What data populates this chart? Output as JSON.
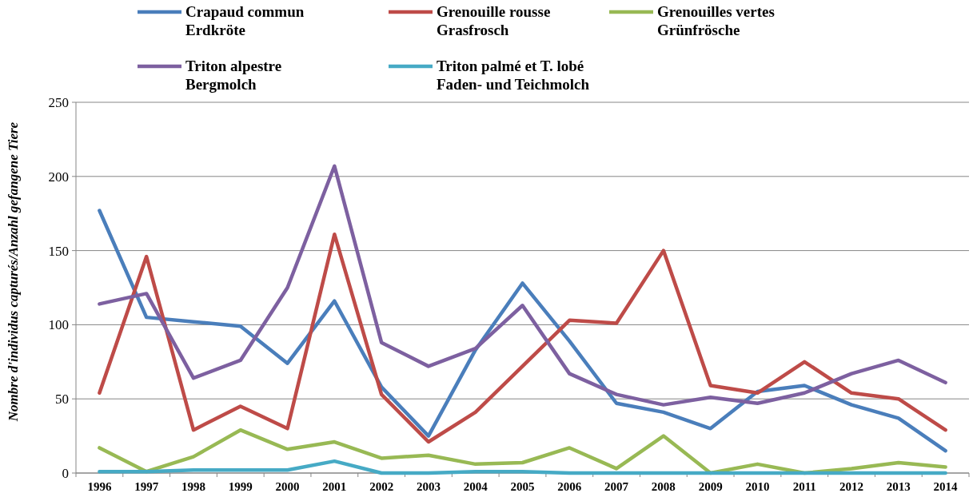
{
  "chart_data": {
    "type": "line",
    "ylabel": "Nombre d'individus capturés/Anzahl gefangene Tiere",
    "categories": [
      "1996",
      "1997",
      "1998",
      "1999",
      "2000",
      "2001",
      "2002",
      "2003",
      "2004",
      "2005",
      "2006",
      "2007",
      "2008",
      "2009",
      "2010",
      "2011",
      "2012",
      "2013",
      "2014"
    ],
    "ylim": [
      0,
      250
    ],
    "yticks": [
      0,
      50,
      100,
      150,
      200,
      250
    ],
    "grid": "y",
    "legend": "top",
    "marker": "none",
    "line_style": "solid",
    "series": [
      {
        "name": "Crapaud commun\nErdkröte",
        "color": "#4a7ebb",
        "values": [
          177,
          105,
          102,
          99,
          74,
          116,
          58,
          25,
          83,
          128,
          89,
          47,
          41,
          30,
          55,
          59,
          46,
          37,
          15
        ]
      },
      {
        "name": "Grenouille rousse\nGrasfrosch",
        "color": "#be4b48",
        "values": [
          54,
          146,
          29,
          45,
          30,
          161,
          53,
          21,
          41,
          72,
          103,
          101,
          150,
          59,
          54,
          75,
          54,
          50,
          29
        ]
      },
      {
        "name": "Grenouilles vertes\nGrünfrösche",
        "color": "#98b954",
        "values": [
          17,
          1,
          11,
          29,
          16,
          21,
          10,
          12,
          6,
          7,
          17,
          3,
          25,
          0,
          6,
          0,
          3,
          7,
          4
        ]
      },
      {
        "name": "Triton alpestre\nBergmolch",
        "color": "#7d60a0",
        "values": [
          114,
          121,
          64,
          76,
          125,
          207,
          88,
          72,
          84,
          113,
          67,
          53,
          46,
          51,
          47,
          54,
          67,
          76,
          61
        ]
      },
      {
        "name": "Triton palmé et T. lobé\nFaden- und Teichmolch",
        "color": "#46aac5",
        "values": [
          1,
          1,
          2,
          2,
          2,
          8,
          0,
          0,
          1,
          1,
          0,
          0,
          0,
          0,
          0,
          0,
          0,
          0,
          0
        ]
      }
    ]
  }
}
